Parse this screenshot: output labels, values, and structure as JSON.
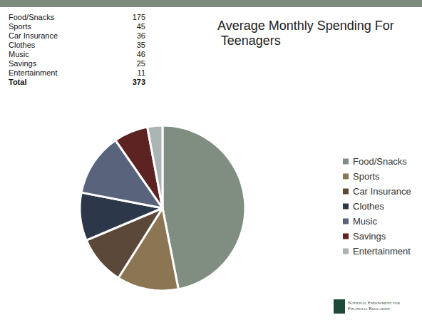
{
  "chart_data": {
    "type": "pie",
    "title": "Average Monthly Spending For Teenagers",
    "categories": [
      "Food/Snacks",
      "Sports",
      "Car Insurance",
      "Clothes",
      "Music",
      "Savings",
      "Entertainment"
    ],
    "values": [
      175,
      45,
      36,
      35,
      46,
      25,
      11
    ],
    "colors": [
      "#7f8e80",
      "#8b7553",
      "#5b4838",
      "#2c3849",
      "#59647c",
      "#5c2322",
      "#a9b4b3"
    ],
    "total": {
      "label": "Total",
      "value": 373
    },
    "legend": "right",
    "data_labels": false,
    "annotations": [
      "National Endowment for Financial Education"
    ]
  }
}
